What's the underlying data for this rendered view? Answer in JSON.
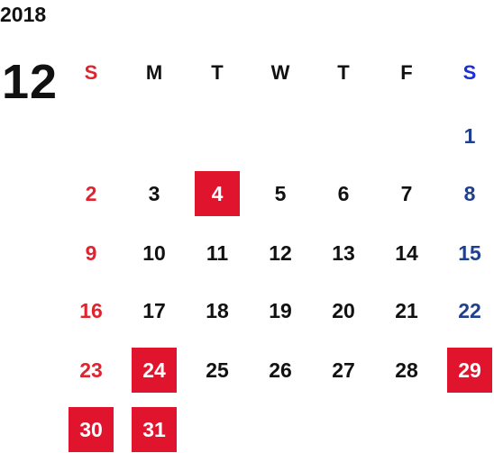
{
  "calendar": {
    "year": "2018",
    "month": "12",
    "weekday_headers": [
      "S",
      "M",
      "T",
      "W",
      "T",
      "F",
      "S"
    ],
    "weeks": [
      [
        null,
        null,
        null,
        null,
        null,
        null,
        "1"
      ],
      [
        "2",
        "3",
        "4",
        "5",
        "6",
        "7",
        "8"
      ],
      [
        "9",
        "10",
        "11",
        "12",
        "13",
        "14",
        "15"
      ],
      [
        "16",
        "17",
        "18",
        "19",
        "20",
        "21",
        "22"
      ],
      [
        "23",
        "24",
        "25",
        "26",
        "27",
        "28",
        "29"
      ],
      [
        "30",
        "31",
        null,
        null,
        null,
        null,
        null
      ]
    ],
    "highlighted_days": [
      "4",
      "24",
      "29",
      "30",
      "31"
    ],
    "colors": {
      "sunday": "#e0232f",
      "saturday": "#1f3f8f",
      "saturday_header": "#1a2fd6",
      "highlight_bg": "#e0142c",
      "text": "#111111"
    }
  }
}
